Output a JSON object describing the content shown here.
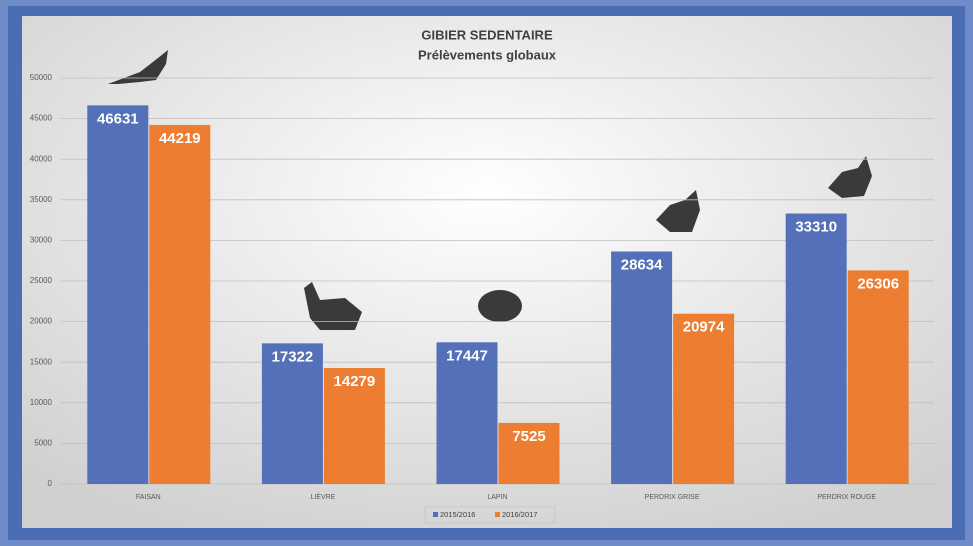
{
  "chart_data": {
    "type": "bar",
    "title": "GIBIER SEDENTAIRE",
    "subtitle": "Prélèvements globaux",
    "categories": [
      "FAISAN",
      "LIÈVRE",
      "LAPIN",
      "PERDRIX GRISE",
      "PERDRIX ROUGE"
    ],
    "series": [
      {
        "name": "2015/2016",
        "color": "#5470b9",
        "values": [
          46631,
          17322,
          17447,
          28634,
          33310
        ]
      },
      {
        "name": "2016/2017",
        "color": "#ed7d31",
        "values": [
          44219,
          14279,
          7525,
          20974,
          26306
        ]
      }
    ],
    "ylim": [
      0,
      50000
    ],
    "yticks": [
      0,
      5000,
      10000,
      15000,
      20000,
      25000,
      30000,
      35000,
      40000,
      45000,
      50000
    ],
    "grid": true,
    "legend": "bottom"
  }
}
